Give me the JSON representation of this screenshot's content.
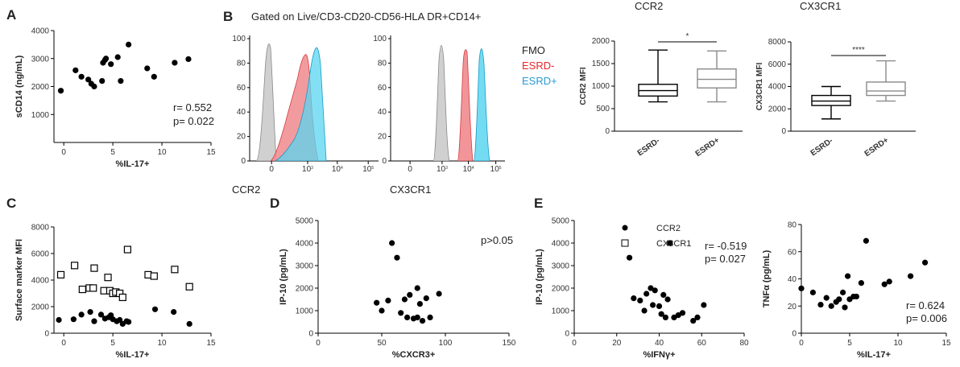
{
  "panels": {
    "A": {
      "label": "A",
      "stat_r": "r= 0.552",
      "stat_p": "p= 0.022"
    },
    "B": {
      "label": "B",
      "gating": "Gated on Live/CD3-CD20-CD56-HLA DR+CD14+",
      "hist1_xlabel": "CCR2",
      "hist2_xlabel": "CX3CR1",
      "legend": [
        {
          "label": "FMO",
          "color": "#222222"
        },
        {
          "label": "ESRD-",
          "color": "#e8262b"
        },
        {
          "label": "ESRD+",
          "color": "#2a9ad6"
        }
      ],
      "box1_title": "CCR2",
      "box2_title": "CX3CR1",
      "box1_sig": "*",
      "box2_sig": "****"
    },
    "C": {
      "label": "C"
    },
    "D": {
      "label": "D",
      "stat": "p>0.05"
    },
    "E": {
      "label": "E",
      "stat1_r": "r= -0.519",
      "stat1_p": "p= 0.027",
      "stat2_r": "r= 0.624",
      "stat2_p": "p= 0.006"
    }
  },
  "colors": {
    "fmo": "#c8c8c8",
    "esrd_neg": "#f07a7e",
    "esrd_pos": "#56d3ee",
    "point": "#000000"
  },
  "chart_data": [
    {
      "id": "A",
      "type": "scatter",
      "xlabel": "%IL-17+",
      "ylabel": "sCD14  (ng/mL)",
      "xlim": [
        -1,
        15
      ],
      "ylim": [
        0,
        4000
      ],
      "xticks": [
        0,
        5,
        10,
        15
      ],
      "yticks": [
        1000,
        2000,
        3000,
        4000
      ],
      "points": [
        [
          -0.3,
          1850
        ],
        [
          1.2,
          2580
        ],
        [
          1.8,
          2350
        ],
        [
          2.5,
          2250
        ],
        [
          2.8,
          2100
        ],
        [
          3.1,
          2000
        ],
        [
          3.9,
          2200
        ],
        [
          4.0,
          2850
        ],
        [
          4.2,
          2950
        ],
        [
          4.3,
          3000
        ],
        [
          4.8,
          2800
        ],
        [
          5.5,
          3050
        ],
        [
          5.8,
          2200
        ],
        [
          6.6,
          3500
        ],
        [
          8.5,
          2650
        ],
        [
          9.2,
          2350
        ],
        [
          11.3,
          2850
        ],
        [
          12.7,
          2980
        ]
      ]
    },
    {
      "id": "B-hist-CCR2",
      "type": "area",
      "xlabel": "CCR2",
      "yticks": [
        0,
        20,
        40,
        60,
        80,
        100
      ],
      "xticks": [
        "0",
        "10^3",
        "10^4",
        "10^5"
      ]
    },
    {
      "id": "B-hist-CX3CR1",
      "type": "area",
      "xlabel": "CX3CR1",
      "yticks": [
        0,
        20,
        40,
        60,
        80,
        100
      ],
      "xticks": [
        "0",
        "10^3",
        "10^4",
        "10^5"
      ]
    },
    {
      "id": "B-box-CCR2",
      "type": "box",
      "title": "CCR2",
      "ylabel": "CCR2 MFI",
      "ylim": [
        0,
        2000
      ],
      "yticks": [
        0,
        500,
        1000,
        1500,
        2000
      ],
      "categories": [
        "ESRD-",
        "ESRD+"
      ],
      "boxes": [
        {
          "min": 650,
          "q1": 780,
          "median": 900,
          "q3": 1040,
          "max": 1800
        },
        {
          "min": 650,
          "q1": 960,
          "median": 1150,
          "q3": 1380,
          "max": 1780
        }
      ]
    },
    {
      "id": "B-box-CX3CR1",
      "type": "box",
      "title": "CX3CR1",
      "ylabel": "CX3CR1 MFI",
      "ylim": [
        0,
        8000
      ],
      "yticks": [
        0,
        2000,
        4000,
        6000,
        8000
      ],
      "categories": [
        "ESRD-",
        "ESRD+"
      ],
      "boxes": [
        {
          "min": 1100,
          "q1": 2300,
          "median": 2700,
          "q3": 3200,
          "max": 4000
        },
        {
          "min": 2700,
          "q1": 3200,
          "median": 3600,
          "q3": 4400,
          "max": 6300
        }
      ]
    },
    {
      "id": "C",
      "type": "scatter",
      "xlabel": "%IL-17+",
      "ylabel": "Surface marker MFI",
      "xlim": [
        -1,
        15
      ],
      "ylim": [
        0,
        8000
      ],
      "xticks": [
        0,
        5,
        10,
        15
      ],
      "yticks": [
        0,
        2000,
        4000,
        6000,
        8000
      ],
      "series": [
        {
          "name": "CCR2",
          "marker": "circle",
          "points": [
            [
              -0.5,
              1000
            ],
            [
              1,
              1050
            ],
            [
              1.8,
              1400
            ],
            [
              2.7,
              1600
            ],
            [
              3.1,
              900
            ],
            [
              3.8,
              1400
            ],
            [
              4.2,
              1100
            ],
            [
              4.6,
              1200
            ],
            [
              4.8,
              1350
            ],
            [
              5.0,
              1050
            ],
            [
              5.4,
              900
            ],
            [
              5.7,
              1000
            ],
            [
              6.0,
              700
            ],
            [
              6.4,
              900
            ],
            [
              6.6,
              850
            ],
            [
              9.3,
              1800
            ],
            [
              11.2,
              1600
            ],
            [
              12.8,
              700
            ]
          ]
        },
        {
          "name": "CX3CR1",
          "marker": "square",
          "points": [
            [
              -0.3,
              4400
            ],
            [
              1.1,
              5100
            ],
            [
              1.9,
              3300
            ],
            [
              2.6,
              3400
            ],
            [
              3.0,
              3400
            ],
            [
              3.1,
              4900
            ],
            [
              4.1,
              3200
            ],
            [
              4.5,
              4200
            ],
            [
              4.7,
              3200
            ],
            [
              5.0,
              3000
            ],
            [
              5.3,
              3100
            ],
            [
              5.7,
              3000
            ],
            [
              6.0,
              2700
            ],
            [
              6.5,
              6300
            ],
            [
              8.6,
              4400
            ],
            [
              9.2,
              4300
            ],
            [
              11.3,
              4800
            ],
            [
              12.8,
              3500
            ]
          ]
        }
      ]
    },
    {
      "id": "D",
      "type": "scatter",
      "xlabel": "%CXCR3+",
      "ylabel": "IP-10 (pg/mL)",
      "xlim": [
        0,
        150
      ],
      "ylim": [
        0,
        5000
      ],
      "xticks": [
        0,
        50,
        100,
        150
      ],
      "yticks": [
        0,
        1000,
        2000,
        3000,
        4000,
        5000
      ],
      "points": [
        [
          46,
          1350
        ],
        [
          50,
          1000
        ],
        [
          55,
          1450
        ],
        [
          58,
          4000
        ],
        [
          62,
          3350
        ],
        [
          65,
          900
        ],
        [
          68,
          1500
        ],
        [
          70,
          700
        ],
        [
          72,
          1700
        ],
        [
          75,
          650
        ],
        [
          78,
          2000
        ],
        [
          78,
          700
        ],
        [
          80,
          1300
        ],
        [
          82,
          550
        ],
        [
          85,
          1550
        ],
        [
          88,
          700
        ],
        [
          95,
          1750
        ]
      ]
    },
    {
      "id": "E1",
      "type": "scatter",
      "xlabel": "%IFNγ+",
      "ylabel": "IP-10 (pg/mL)",
      "xlim": [
        0,
        80
      ],
      "ylim": [
        0,
        5000
      ],
      "xticks": [
        0,
        20,
        40,
        60,
        80
      ],
      "yticks": [
        0,
        1000,
        2000,
        3000,
        4000,
        5000
      ],
      "points": [
        [
          26,
          3350
        ],
        [
          28,
          1550
        ],
        [
          31,
          1450
        ],
        [
          33,
          1000
        ],
        [
          34,
          1750
        ],
        [
          36,
          2000
        ],
        [
          37,
          1250
        ],
        [
          38,
          1900
        ],
        [
          40,
          1200
        ],
        [
          41,
          850
        ],
        [
          42,
          1700
        ],
        [
          43,
          700
        ],
        [
          44,
          1500
        ],
        [
          45,
          4000
        ],
        [
          47,
          700
        ],
        [
          49,
          800
        ],
        [
          51,
          900
        ],
        [
          56,
          550
        ],
        [
          58,
          700
        ],
        [
          61,
          1250
        ]
      ]
    },
    {
      "id": "E2",
      "type": "scatter",
      "xlabel": "%IL-17+",
      "ylabel": "TNFα (pg/mL)",
      "xlim": [
        0,
        15
      ],
      "ylim": [
        0,
        80
      ],
      "xticks": [
        0,
        5,
        10,
        15
      ],
      "yticks": [
        0,
        20,
        40,
        60,
        80
      ],
      "points": [
        [
          0,
          33
        ],
        [
          1.2,
          30
        ],
        [
          2,
          21
        ],
        [
          2.6,
          26
        ],
        [
          3.1,
          20
        ],
        [
          3.6,
          23
        ],
        [
          3.9,
          25
        ],
        [
          4.3,
          30
        ],
        [
          4.5,
          19
        ],
        [
          4.8,
          42
        ],
        [
          5.0,
          25
        ],
        [
          5.4,
          27
        ],
        [
          5.7,
          27
        ],
        [
          6.2,
          37
        ],
        [
          6.7,
          68
        ],
        [
          8.6,
          36
        ],
        [
          9.1,
          38
        ],
        [
          11.3,
          42
        ],
        [
          12.8,
          52
        ]
      ]
    }
  ]
}
